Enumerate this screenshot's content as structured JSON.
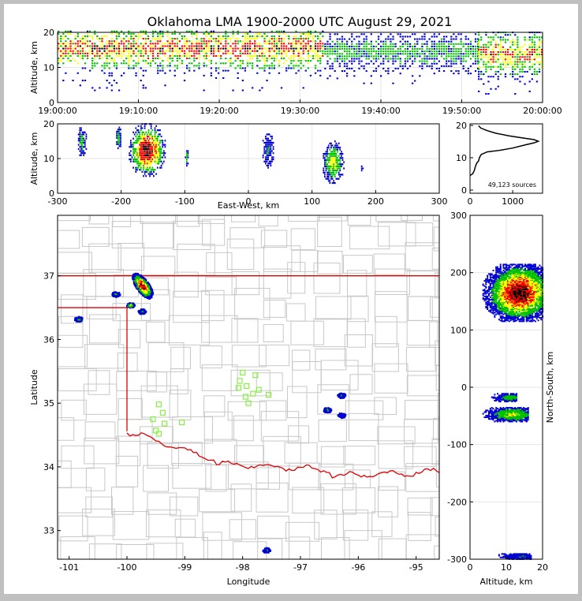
{
  "title": "Oklahoma LMA 1900-2000 UTC August 29, 2021",
  "colors": {
    "density_scale": [
      "#0000d0",
      "#00c000",
      "#ffff00",
      "#ff0000",
      "#000000"
    ],
    "state_border": "#dd0000",
    "county_lines": "#c8c8c8",
    "station_marker": "#88ee44"
  },
  "chart_data": [
    {
      "id": "time-altitude",
      "type": "heatmap",
      "ylabel": "Altitude, km",
      "xlabel": "",
      "x_ticks": [
        "19:00:00",
        "19:10:00",
        "19:20:00",
        "19:30:00",
        "19:40:00",
        "19:50:00",
        "20:00:00"
      ],
      "xlim_minutes": [
        0,
        60
      ],
      "ylim": [
        0,
        20
      ],
      "y_ticks": [
        0,
        10,
        20
      ],
      "grid": true,
      "segments": [
        {
          "t": [
            0,
            33
          ],
          "alt": [
            3,
            20
          ],
          "core": [
            12,
            18
          ],
          "intensity": 0.85
        },
        {
          "t": [
            33,
            52
          ],
          "alt": [
            5,
            19
          ],
          "core": [
            12,
            16
          ],
          "intensity": 0.35
        },
        {
          "t": [
            52,
            60
          ],
          "alt": [
            2,
            20
          ],
          "core": [
            10,
            17
          ],
          "intensity": 0.75
        }
      ]
    },
    {
      "id": "ew-altitude",
      "type": "heatmap",
      "ylabel": "Altitude, km",
      "xlabel": "East-West, km",
      "xlim": [
        -300,
        300
      ],
      "x_ticks": [
        -300,
        -200,
        -100,
        0,
        100,
        200,
        300
      ],
      "ylim": [
        0,
        20
      ],
      "y_ticks": [
        0,
        10,
        20
      ],
      "grid": true,
      "clusters": [
        {
          "x": [
            -270,
            -255
          ],
          "y": [
            10,
            19
          ],
          "peak": 0.35
        },
        {
          "x": [
            -210,
            -200
          ],
          "y": [
            12,
            19
          ],
          "peak": 0.4
        },
        {
          "x": [
            -190,
            -130
          ],
          "y": [
            4,
            20
          ],
          "peak": 1.0
        },
        {
          "x": [
            -100,
            -95
          ],
          "y": [
            7,
            13
          ],
          "peak": 0.45
        },
        {
          "x": [
            20,
            40
          ],
          "y": [
            7,
            17
          ],
          "peak": 0.25
        },
        {
          "x": [
            115,
            150
          ],
          "y": [
            2,
            15
          ],
          "peak": 0.55
        },
        {
          "x": [
            175,
            180
          ],
          "y": [
            5,
            8
          ],
          "peak": 0.15
        }
      ]
    },
    {
      "id": "altitude-histogram",
      "type": "line",
      "annotation": "49,123 sources",
      "xlim": [
        0,
        1700
      ],
      "x_ticks": [
        0,
        1000
      ],
      "ylim": [
        0,
        20
      ],
      "y_ticks": [
        0,
        10,
        20
      ],
      "points": [
        [
          0,
          4.5
        ],
        [
          60,
          5
        ],
        [
          100,
          6
        ],
        [
          120,
          7
        ],
        [
          140,
          7.8
        ],
        [
          160,
          8.4
        ],
        [
          200,
          9
        ],
        [
          220,
          10
        ],
        [
          260,
          11
        ],
        [
          400,
          11.8
        ],
        [
          700,
          12.3
        ],
        [
          1000,
          13
        ],
        [
          1300,
          14
        ],
        [
          1500,
          14.6
        ],
        [
          1600,
          15.1
        ],
        [
          1500,
          15.6
        ],
        [
          1200,
          16.2
        ],
        [
          900,
          16.8
        ],
        [
          600,
          17.6
        ],
        [
          400,
          18.4
        ],
        [
          250,
          19.2
        ],
        [
          200,
          19.9
        ]
      ]
    },
    {
      "id": "plan-view",
      "type": "heatmap",
      "xlabel": "Longitude",
      "ylabel": "Latitude",
      "xlim": [
        -101.2,
        -94.6
      ],
      "x_ticks": [
        -101,
        -100,
        -99,
        -98,
        -97,
        -96,
        -95
      ],
      "ylim": [
        32.55,
        37.95
      ],
      "y_ticks": [
        33,
        34,
        35,
        36,
        37
      ],
      "clusters": [
        {
          "lon": -99.8,
          "lat": 36.85,
          "peak": 1.0
        },
        {
          "lon": -99.95,
          "lat": 36.55,
          "peak": 0.6
        },
        {
          "lon": -100.2,
          "lat": 36.72,
          "peak": 0.35
        },
        {
          "lon": -100.85,
          "lat": 36.33,
          "peak": 0.3
        },
        {
          "lon": -99.75,
          "lat": 36.45,
          "peak": 0.25
        },
        {
          "lon": -96.3,
          "lat": 35.13,
          "peak": 0.3
        },
        {
          "lon": -96.55,
          "lat": 34.9,
          "peak": 0.3
        },
        {
          "lon": -96.3,
          "lat": 34.82,
          "peak": 0.25
        },
        {
          "lon": -97.6,
          "lat": 32.7,
          "peak": 0.25
        }
      ],
      "stations": [
        [
          -98.0,
          35.48
        ],
        [
          -98.05,
          35.35
        ],
        [
          -98.07,
          35.24
        ],
        [
          -97.93,
          35.27
        ],
        [
          -97.78,
          35.44
        ],
        [
          -97.72,
          35.21
        ],
        [
          -97.95,
          35.1
        ],
        [
          -97.82,
          35.15
        ],
        [
          -97.9,
          35.0
        ],
        [
          -97.55,
          35.13
        ],
        [
          -99.45,
          34.98
        ],
        [
          -99.38,
          34.85
        ],
        [
          -99.55,
          34.75
        ],
        [
          -99.35,
          34.68
        ],
        [
          -99.5,
          34.57
        ],
        [
          -99.45,
          34.52
        ],
        [
          -99.05,
          34.7
        ]
      ]
    },
    {
      "id": "altitude-northsouth",
      "type": "heatmap",
      "ylabel": "North-South, km",
      "xlabel": "Altitude, km",
      "xlim": [
        0,
        20
      ],
      "x_ticks": [
        0,
        10,
        20
      ],
      "ylim": [
        -300,
        300
      ],
      "y_ticks": [
        -300,
        -200,
        -100,
        0,
        100,
        200,
        300
      ],
      "grid": true,
      "clusters": [
        {
          "alt": [
            3,
            20
          ],
          "ns": [
            115,
            215
          ],
          "peak": 1.0
        },
        {
          "alt": [
            5,
            13
          ],
          "ns": [
            -25,
            -10
          ],
          "peak": 0.35
        },
        {
          "alt": [
            3,
            16
          ],
          "ns": [
            -60,
            -35
          ],
          "peak": 0.5
        },
        {
          "alt": [
            7,
            17
          ],
          "ns": [
            -300,
            -290
          ],
          "peak": 0.2
        }
      ]
    }
  ]
}
